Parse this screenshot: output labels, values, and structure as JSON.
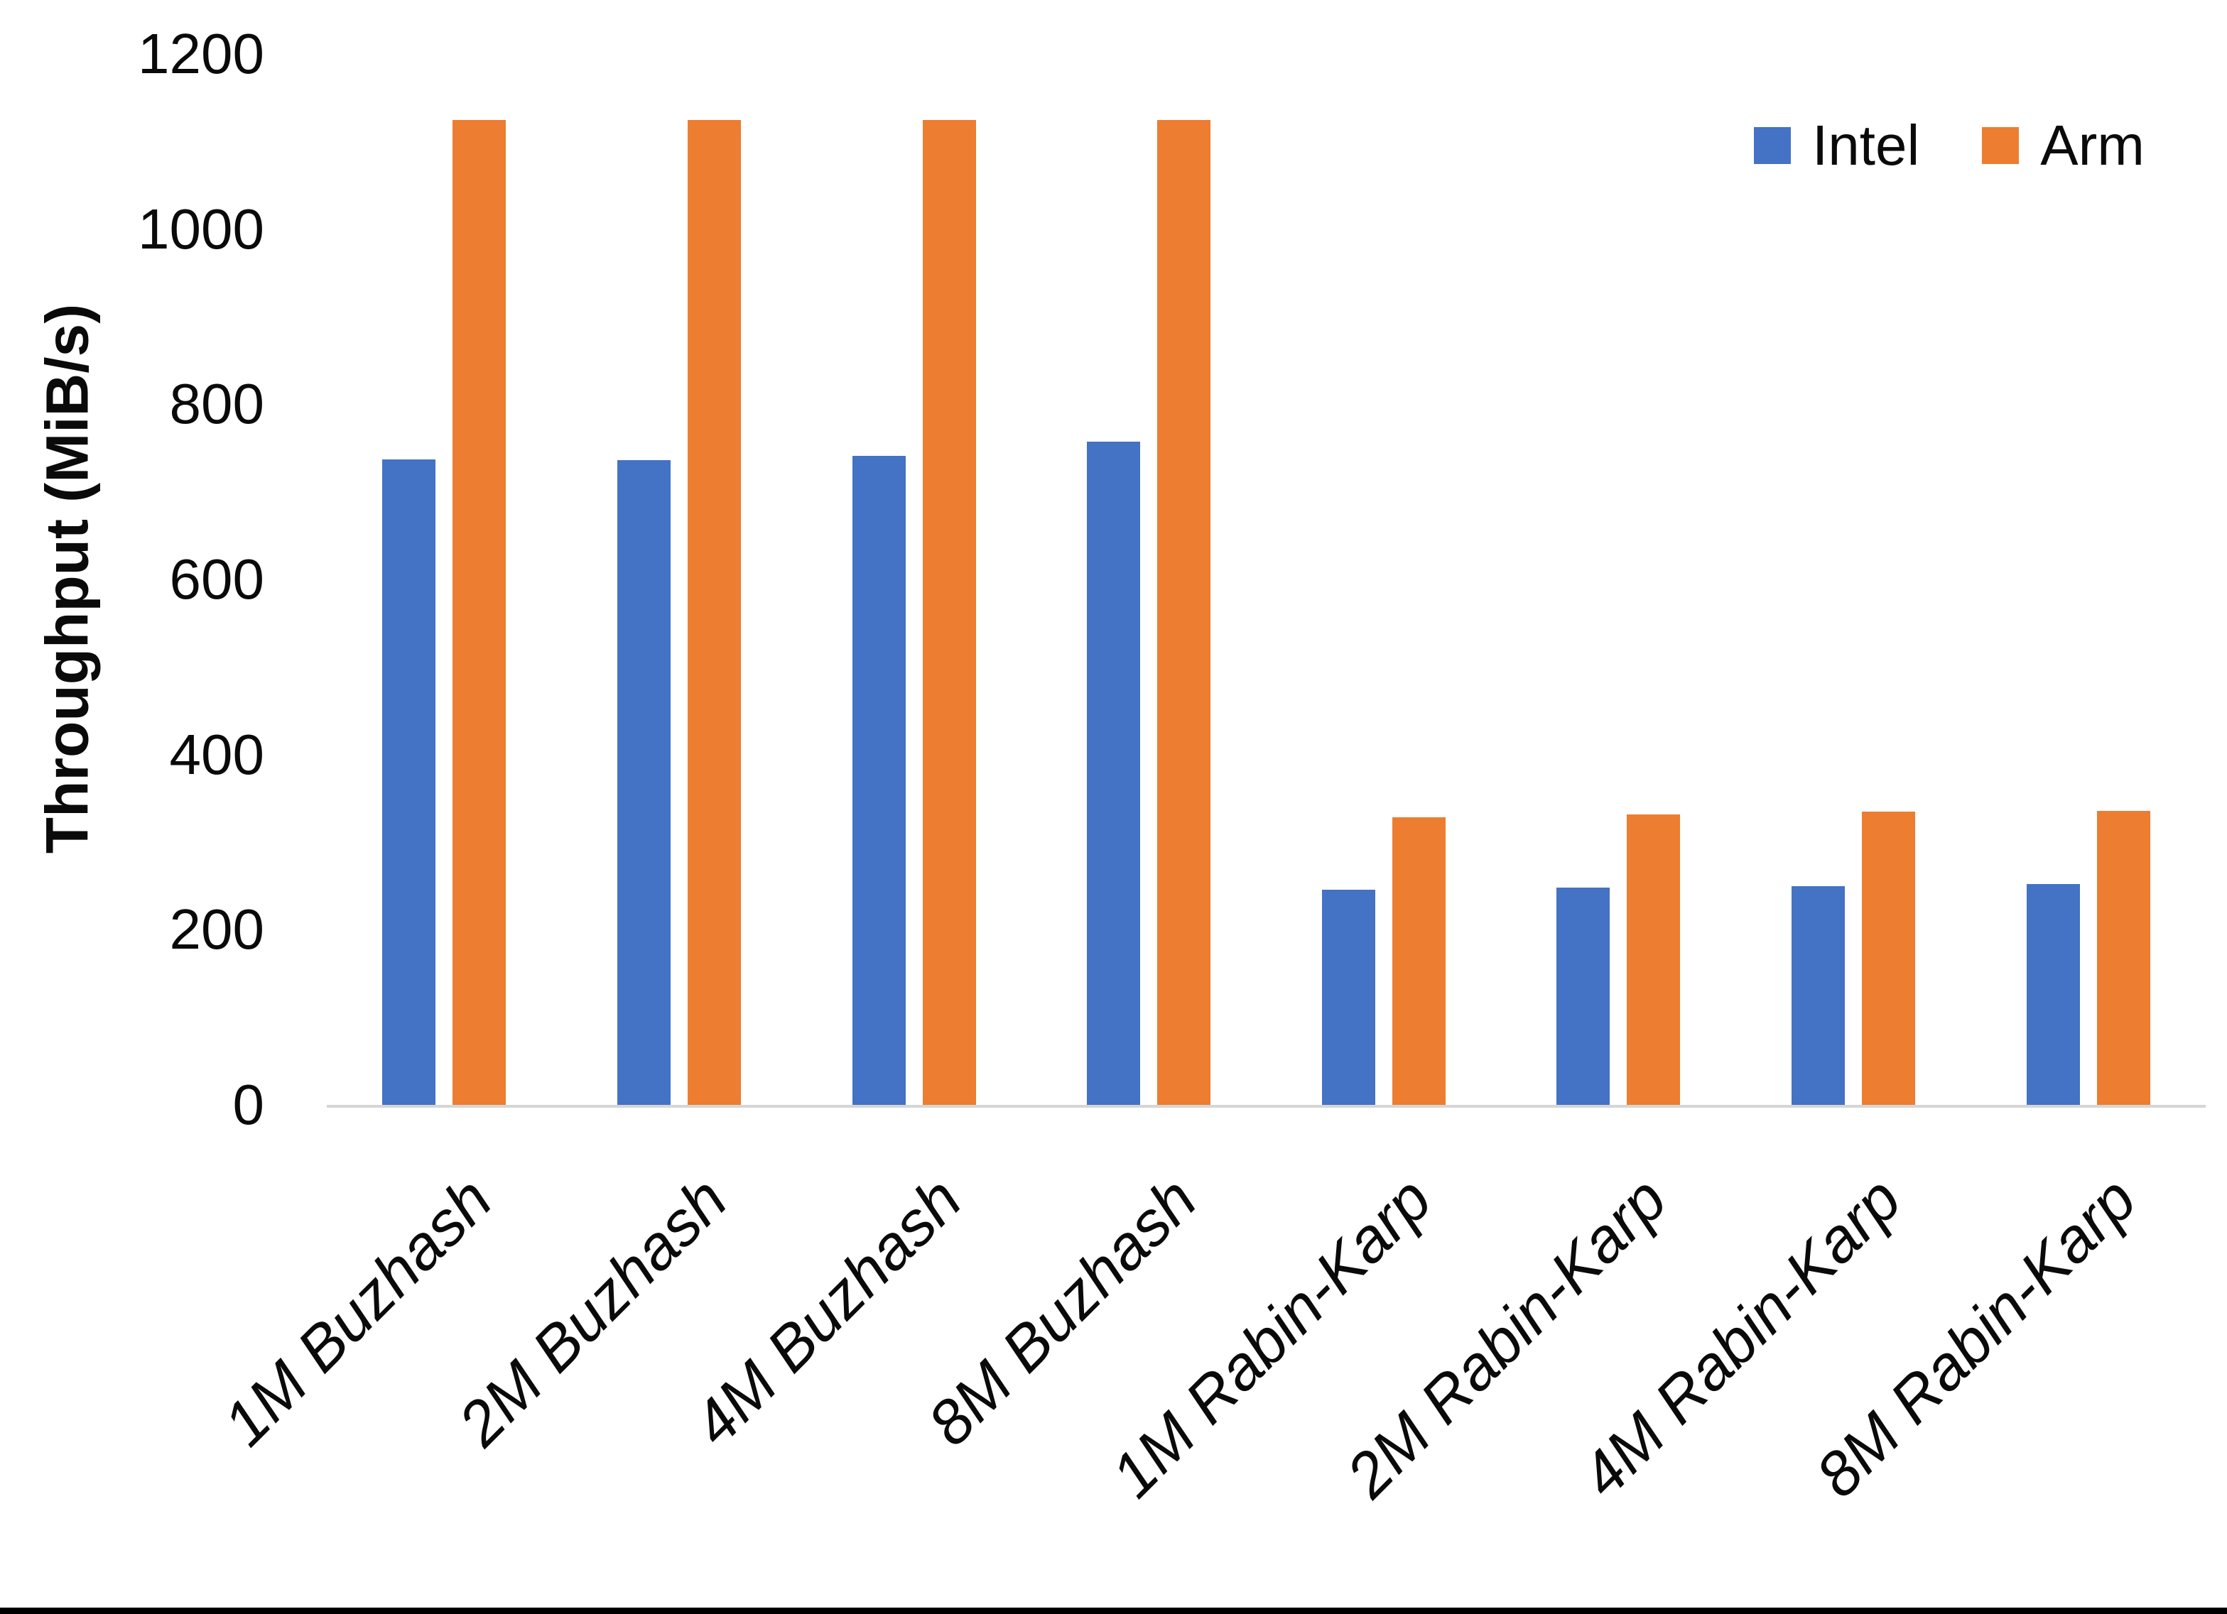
{
  "chart_data": {
    "type": "bar",
    "title": "",
    "ylabel": "Throughput (MiB/s)",
    "xlabel": "",
    "ylim": [
      0,
      1200
    ],
    "yticks": [
      0,
      200,
      400,
      600,
      800,
      1000,
      1200
    ],
    "grid": false,
    "legend_position": "top-right",
    "categories": [
      "1M Buzhash",
      "2M Buzhash",
      "4M Buzhash",
      "8M Buzhash",
      "1M Rabin-Karp",
      "2M Rabin-Karp",
      "4M Rabin-Karp",
      "8M Rabin-Karp"
    ],
    "series": [
      {
        "name": "Intel",
        "color": "#4472C4",
        "values": [
          737,
          736,
          741,
          757,
          246,
          248,
          250,
          252
        ]
      },
      {
        "name": "Arm",
        "color": "#ED7D31",
        "values": [
          1125,
          1125,
          1125,
          1125,
          328,
          332,
          335,
          336
        ]
      }
    ]
  }
}
